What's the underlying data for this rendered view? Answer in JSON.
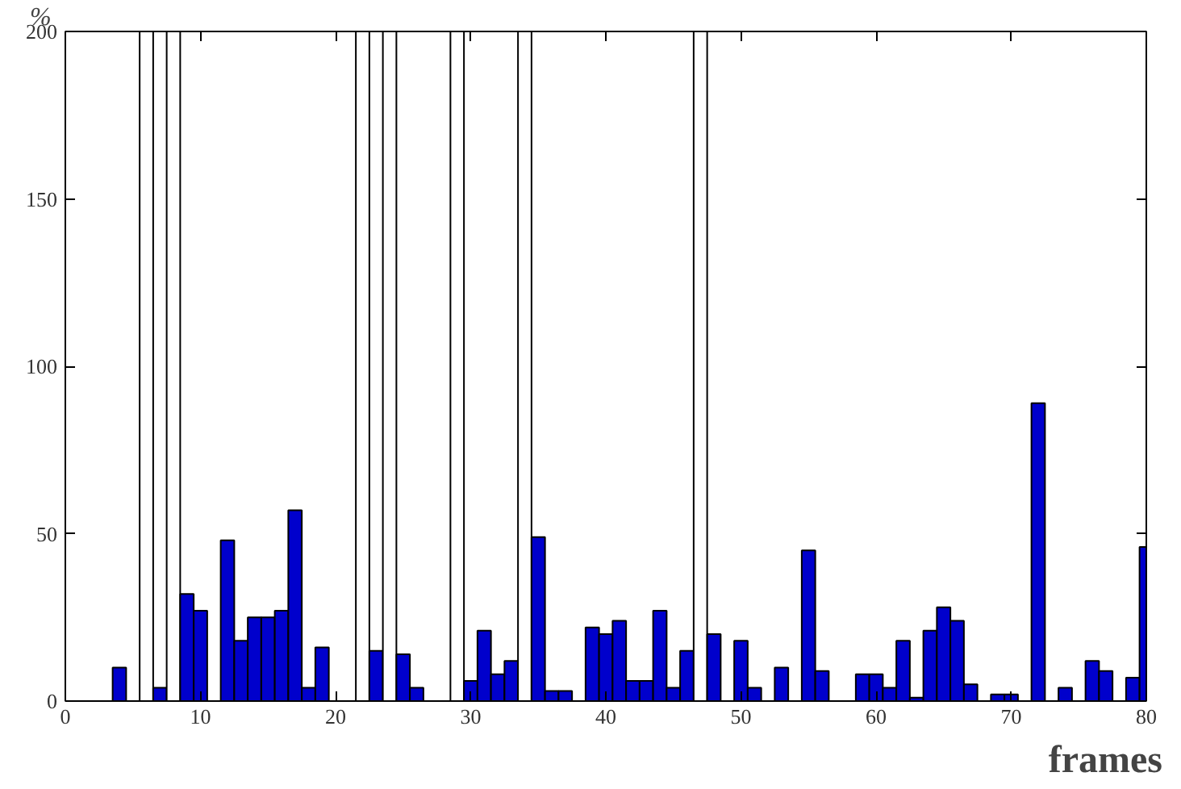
{
  "chart_data": {
    "type": "bar",
    "xlabel": "frames",
    "ylabel": "%",
    "x": [
      0,
      1,
      2,
      3,
      4,
      5,
      6,
      7,
      8,
      9,
      10,
      11,
      12,
      13,
      14,
      15,
      16,
      17,
      18,
      19,
      20,
      21,
      22,
      23,
      24,
      25,
      26,
      27,
      28,
      29,
      30,
      31,
      32,
      33,
      34,
      35,
      36,
      37,
      38,
      39,
      40,
      41,
      42,
      43,
      44,
      45,
      46,
      47,
      48,
      49,
      50,
      51,
      52,
      53,
      54,
      55,
      56,
      57,
      58,
      59,
      60,
      61,
      62,
      63,
      64,
      65,
      66,
      67,
      68,
      69,
      70,
      71,
      72,
      73,
      74,
      75,
      76,
      77,
      78,
      79,
      80
    ],
    "values": [
      0,
      0,
      0,
      0,
      10,
      0,
      200,
      4,
      200,
      32,
      27,
      0,
      48,
      18,
      25,
      25,
      27,
      57,
      4,
      16,
      0,
      0,
      200,
      15,
      200,
      14,
      4,
      0,
      0,
      200,
      6,
      21,
      8,
      12,
      200,
      49,
      3,
      3,
      0,
      22,
      20,
      24,
      6,
      6,
      27,
      4,
      15,
      200,
      20,
      0,
      18,
      4,
      0,
      10,
      0,
      45,
      9,
      0,
      0,
      8,
      8,
      4,
      18,
      1,
      21,
      28,
      24,
      5,
      0,
      2,
      2,
      0,
      89,
      0,
      4,
      0,
      12,
      9,
      0,
      7,
      46
    ],
    "colors": [
      "#0000cc",
      "#0000cc",
      "#0000cc",
      "#0000cc",
      "#0000cc",
      "#0000cc",
      "#ffffff",
      "#0000cc",
      "#ffffff",
      "#0000cc",
      "#0000cc",
      "#0000cc",
      "#0000cc",
      "#0000cc",
      "#0000cc",
      "#0000cc",
      "#0000cc",
      "#0000cc",
      "#0000cc",
      "#0000cc",
      "#0000cc",
      "#0000cc",
      "#ffffff",
      "#0000cc",
      "#ffffff",
      "#0000cc",
      "#0000cc",
      "#0000cc",
      "#0000cc",
      "#ffffff",
      "#0000cc",
      "#0000cc",
      "#0000cc",
      "#0000cc",
      "#ffffff",
      "#0000cc",
      "#0000cc",
      "#0000cc",
      "#0000cc",
      "#0000cc",
      "#0000cc",
      "#0000cc",
      "#0000cc",
      "#0000cc",
      "#0000cc",
      "#0000cc",
      "#0000cc",
      "#ffffff",
      "#0000cc",
      "#0000cc",
      "#0000cc",
      "#0000cc",
      "#0000cc",
      "#0000cc",
      "#0000cc",
      "#0000cc",
      "#0000cc",
      "#0000cc",
      "#0000cc",
      "#0000cc",
      "#0000cc",
      "#0000cc",
      "#0000cc",
      "#0000cc",
      "#0000cc",
      "#0000cc",
      "#0000cc",
      "#0000cc",
      "#0000cc",
      "#0000cc",
      "#0000cc",
      "#0000cc",
      "#0000cc",
      "#0000cc",
      "#0000cc",
      "#0000cc",
      "#0000cc",
      "#0000cc",
      "#0000cc",
      "#0000cc",
      "#0000cc"
    ],
    "xlim": [
      0,
      80
    ],
    "ylim": [
      0,
      200
    ],
    "xticks": [
      0,
      10,
      20,
      30,
      40,
      50,
      60,
      70,
      80
    ],
    "yticks": [
      0,
      50,
      100,
      150,
      200
    ]
  }
}
